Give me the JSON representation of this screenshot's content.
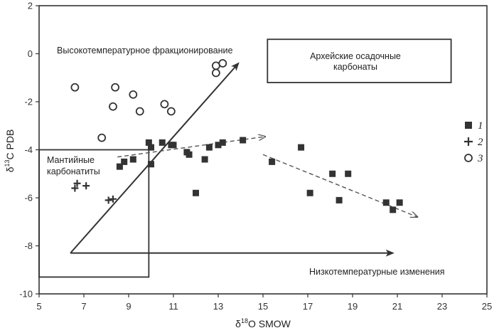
{
  "chart_data": {
    "type": "scatter",
    "xlabel_prefix": "δ",
    "xlabel_sup": "18",
    "xlabel_rest": "O SMOW",
    "ylabel_prefix": "δ",
    "ylabel_sup": "13",
    "ylabel_rest": "C PDB",
    "xlim": [
      5,
      25
    ],
    "ylim": [
      -10,
      2
    ],
    "xticks": [
      5,
      7,
      9,
      11,
      13,
      15,
      17,
      19,
      21,
      23,
      25
    ],
    "yticks": [
      2,
      0,
      -2,
      -4,
      -6,
      -8,
      -10
    ],
    "series": [
      {
        "name": "1",
        "marker": "square",
        "points": [
          [
            8.6,
            -4.7
          ],
          [
            8.8,
            -4.5
          ],
          [
            9.2,
            -4.4
          ],
          [
            9.9,
            -3.7
          ],
          [
            10.0,
            -3.9
          ],
          [
            10.0,
            -4.6
          ],
          [
            10.5,
            -3.7
          ],
          [
            10.9,
            -3.8
          ],
          [
            11.0,
            -3.8
          ],
          [
            11.6,
            -4.1
          ],
          [
            11.7,
            -4.2
          ],
          [
            12.0,
            -5.8
          ],
          [
            12.4,
            -4.4
          ],
          [
            12.6,
            -3.9
          ],
          [
            13.0,
            -3.8
          ],
          [
            13.2,
            -3.7
          ],
          [
            14.1,
            -3.6
          ],
          [
            15.4,
            -4.5
          ],
          [
            16.7,
            -3.9
          ],
          [
            17.1,
            -5.8
          ],
          [
            18.1,
            -5.0
          ],
          [
            18.4,
            -6.1
          ],
          [
            18.8,
            -5.0
          ],
          [
            20.5,
            -6.2
          ],
          [
            20.8,
            -6.5
          ],
          [
            21.1,
            -6.2
          ]
        ]
      },
      {
        "name": "2",
        "marker": "plus",
        "points": [
          [
            6.6,
            -5.6
          ],
          [
            6.7,
            -5.4
          ],
          [
            7.1,
            -5.5
          ],
          [
            8.1,
            -6.1
          ],
          [
            8.3,
            -6.05
          ]
        ]
      },
      {
        "name": "3",
        "marker": "circle",
        "points": [
          [
            6.6,
            -1.4
          ],
          [
            7.8,
            -3.5
          ],
          [
            8.3,
            -2.2
          ],
          [
            8.4,
            -1.4
          ],
          [
            9.2,
            -1.7
          ],
          [
            9.5,
            -2.4
          ],
          [
            10.6,
            -2.1
          ],
          [
            10.9,
            -2.4
          ],
          [
            12.9,
            -0.8
          ],
          [
            12.9,
            -0.5
          ],
          [
            13.2,
            -0.4
          ]
        ]
      }
    ],
    "annotations": {
      "high_temp": "Высокотемпературное фракционирование",
      "archean_line1": "Архейские осадочные",
      "archean_line2": "карбонаты",
      "mantle_line1": "Мантийные",
      "mantle_line2": "карбонатиты",
      "low_temp": "Низкотемпературные изменения"
    },
    "guides": {
      "high_temp_arrow": [
        [
          6.4,
          -8.3
        ],
        [
          13.9,
          -0.4
        ]
      ],
      "low_temp_arrow": [
        [
          6.4,
          -8.3
        ],
        [
          20.8,
          -8.3
        ]
      ],
      "trend_a": [
        [
          8.5,
          -4.3
        ],
        [
          15.1,
          -3.45
        ]
      ],
      "trend_b": [
        [
          15.0,
          -4.2
        ],
        [
          21.9,
          -6.8
        ]
      ],
      "archean_box": [
        [
          15.2,
          0.6
        ],
        [
          23.4,
          -1.2
        ]
      ],
      "mantle_box": [
        [
          5.0,
          -4.0
        ],
        [
          9.9,
          -9.3
        ]
      ]
    },
    "legend": [
      "1",
      "2",
      "3"
    ]
  }
}
